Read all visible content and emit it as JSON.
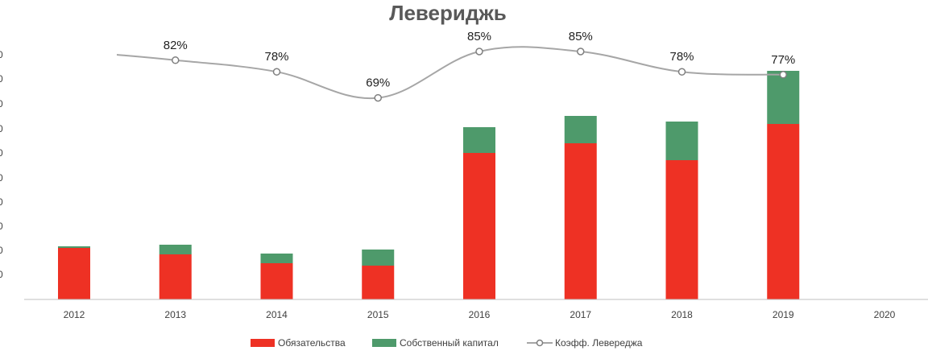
{
  "chart_data": {
    "type": "bar",
    "title": "Левериджь",
    "categories": [
      "2012",
      "2013",
      "2014",
      "2015",
      "2016",
      "2017",
      "2018",
      "2019",
      "2020"
    ],
    "series": [
      {
        "name": "Обязательства",
        "kind": "bar-stacked",
        "color": "#EE3124",
        "values": [
          64,
          56,
          45,
          42,
          182,
          194,
          173,
          218,
          null
        ]
      },
      {
        "name": "Собственный капитал",
        "kind": "bar-stacked",
        "color": "#4E9A6B",
        "values": [
          2,
          12,
          12,
          20,
          32,
          34,
          48,
          66,
          null
        ]
      },
      {
        "name": "Коэфф. Левереджа",
        "kind": "line",
        "color": "#A6A6A6",
        "values": [
          null,
          82,
          78,
          69,
          85,
          85,
          78,
          77,
          null
        ],
        "labels": [
          "",
          "82%",
          "78%",
          "69%",
          "85%",
          "85%",
          "78%",
          "77%",
          ""
        ]
      }
    ],
    "ylim": [
      0,
      300
    ],
    "line_ylim": [
      0,
      100
    ],
    "grid": false,
    "legend_position": "bottom",
    "xlabel": "",
    "ylabel": ""
  }
}
